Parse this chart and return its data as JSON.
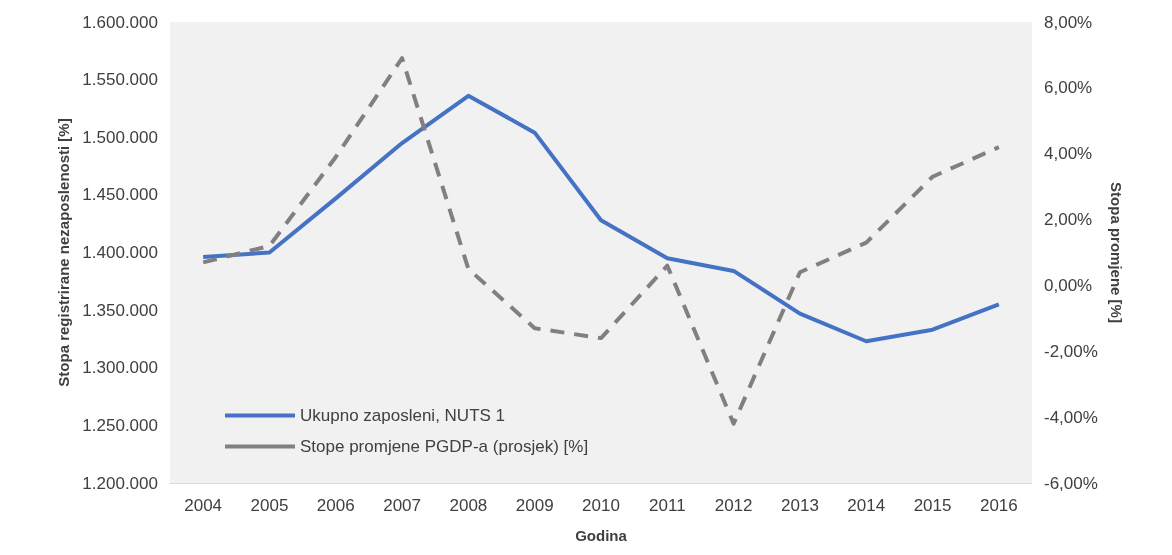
{
  "chart_data": {
    "type": "line",
    "xlabel": "Godina",
    "ylabel": "Stopa registrirane nezaposlenosti [%]",
    "y2label": "Stopa promjene [%]",
    "categories": [
      "2004",
      "2005",
      "2006",
      "2007",
      "2008",
      "2009",
      "2010",
      "2011",
      "2012",
      "2013",
      "2014",
      "2015",
      "2016"
    ],
    "series": [
      {
        "name": "Ukupno zaposleni, NUTS 1",
        "color": "#4472c4",
        "line_style": "solid",
        "values": [
          1396000,
          1400000,
          1447000,
          1495000,
          1536000,
          1504000,
          1428000,
          1395000,
          1384000,
          1347000,
          1323000,
          1333000,
          1355000
        ]
      },
      {
        "name": "Stope promjene PGDP-a (prosjek) [%]",
        "color": "#808080",
        "line_style": "dashed",
        "axis": "y2",
        "values": [
          0.7,
          1.2,
          3.9,
          6.9,
          0.5,
          -1.3,
          -1.6,
          0.6,
          -4.2,
          0.4,
          1.3,
          3.3,
          4.2
        ]
      }
    ],
    "ylim": [
      1200000,
      1600000
    ],
    "yticks": [
      {
        "value": 1200000,
        "label": "1.200.000"
      },
      {
        "value": 1250000,
        "label": "1.250.000"
      },
      {
        "value": 1300000,
        "label": "1.300.000"
      },
      {
        "value": 1350000,
        "label": "1.350.000"
      },
      {
        "value": 1400000,
        "label": "1.400.000"
      },
      {
        "value": 1450000,
        "label": "1.450.000"
      },
      {
        "value": 1500000,
        "label": "1.500.000"
      },
      {
        "value": 1550000,
        "label": "1.550.000"
      },
      {
        "value": 1600000,
        "label": "1.600.000"
      }
    ],
    "y2lim": [
      -6,
      8
    ],
    "y2ticks": [
      {
        "value": -6,
        "label": "-6,00%"
      },
      {
        "value": -4,
        "label": "-4,00%"
      },
      {
        "value": -2,
        "label": "-2,00%"
      },
      {
        "value": 0,
        "label": "0,00%"
      },
      {
        "value": 2,
        "label": "2,00%"
      },
      {
        "value": 4,
        "label": "4,00%"
      },
      {
        "value": 6,
        "label": "6,00%"
      },
      {
        "value": 8,
        "label": "8,00%"
      }
    ],
    "grid": false,
    "legend": "bottom left",
    "marker": "none"
  }
}
